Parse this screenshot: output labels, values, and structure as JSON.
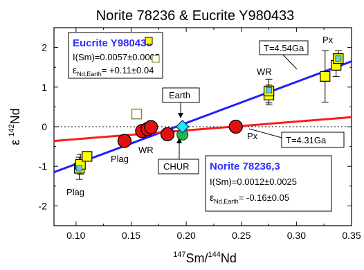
{
  "chart_data": {
    "type": "scatter",
    "title": "Norite 78236 & Eucrite Y980433",
    "xlabel": {
      "base": "Sm/",
      "sup1": "147",
      "sup2": "144",
      "tail": "Nd"
    },
    "ylabel": {
      "eps": "ε",
      "sup": "142",
      "tail": "Nd"
    },
    "xlim": [
      0.08,
      0.35
    ],
    "ylim": [
      -2.5,
      2.5
    ],
    "x_ticks": [
      0.1,
      0.15,
      0.2,
      0.25,
      0.3,
      0.35
    ],
    "x_tick_labels": [
      "0.10",
      "0.15",
      "0.20",
      "0.25",
      "0.30",
      "0.35"
    ],
    "y_ticks": [
      -2,
      -1,
      0,
      1,
      2
    ],
    "y_tick_labels": [
      "-2",
      "-1",
      "0",
      "1",
      "2"
    ],
    "zero_line": true,
    "series": [
      {
        "name": "Eucrite Y980433",
        "color": "#ffff00",
        "marker": "square",
        "points": [
          {
            "x": 0.103,
            "y": -1.05,
            "err": 0.28
          },
          {
            "x": 0.104,
            "y": -0.95,
            "err": 0.25
          },
          {
            "x": 0.11,
            "y": -0.75,
            "err": 0.1
          },
          {
            "x": 0.275,
            "y": 0.8,
            "err": 0.25
          },
          {
            "x": 0.275,
            "y": 0.9,
            "err": 0.3
          },
          {
            "x": 0.326,
            "y": 1.27,
            "err": 0.65
          },
          {
            "x": 0.336,
            "y": 1.55,
            "err": 0.28
          },
          {
            "x": 0.338,
            "y": 1.72,
            "err": 0.2
          }
        ],
        "inner_markers": [
          {
            "x": 0.103,
            "y": -1.05
          },
          {
            "x": 0.275,
            "y": 0.92
          },
          {
            "x": 0.338,
            "y": 1.72
          }
        ],
        "open_marker": {
          "x": 0.155,
          "y": 0.32
        }
      },
      {
        "name": "Norite 78236,3",
        "color": "#e41010",
        "marker": "circle",
        "points": [
          {
            "x": 0.144,
            "y": -0.36
          },
          {
            "x": 0.16,
            "y": -0.11
          },
          {
            "x": 0.165,
            "y": -0.06
          },
          {
            "x": 0.168,
            "y": -0.01
          },
          {
            "x": 0.183,
            "y": -0.19
          },
          {
            "x": 0.245,
            "y": 0.0
          }
        ]
      }
    ],
    "reference_points": {
      "chur": {
        "label": "CHUR",
        "x": 0.1966,
        "y": -0.2,
        "color": "#22b14c"
      },
      "earth": {
        "label": "Earth",
        "x": 0.1966,
        "y": 0.0,
        "color": "#22e6f0"
      }
    },
    "isochrons": [
      {
        "label": "T=4.54Ga",
        "color": "#1f1fff",
        "x": [
          0.08,
          0.35
        ],
        "y": [
          -1.15,
          1.65
        ]
      },
      {
        "label": "T=4.31Ga",
        "color": "#ff1a1a",
        "x": [
          0.08,
          0.35
        ],
        "y": [
          -0.36,
          0.24
        ]
      }
    ],
    "annotations": {
      "plag_euc": "Plag",
      "plag_nor": "Plag",
      "wr_nor": "WR",
      "wr_euc": "WR",
      "px_euc": "Px",
      "px_nor": "Px"
    },
    "legend_eucrite": {
      "title": "Eucrite Y980433",
      "line1": "I(Sm)=0.0057±0.0005",
      "line1_open": "I(Sm)=0.0057±0.0005",
      "line2_eps": "ε",
      "line2_sub": "Nd,Earth",
      "line2_val": "= +0.11±0.04"
    },
    "legend_norite": {
      "title": "Norite 78236,3",
      "line1": "I(Sm)=0.0012±0.0025",
      "line2_eps": "ε",
      "line2_sub": "Nd,Earth",
      "line2_val": "= -0.16±0.05"
    }
  }
}
